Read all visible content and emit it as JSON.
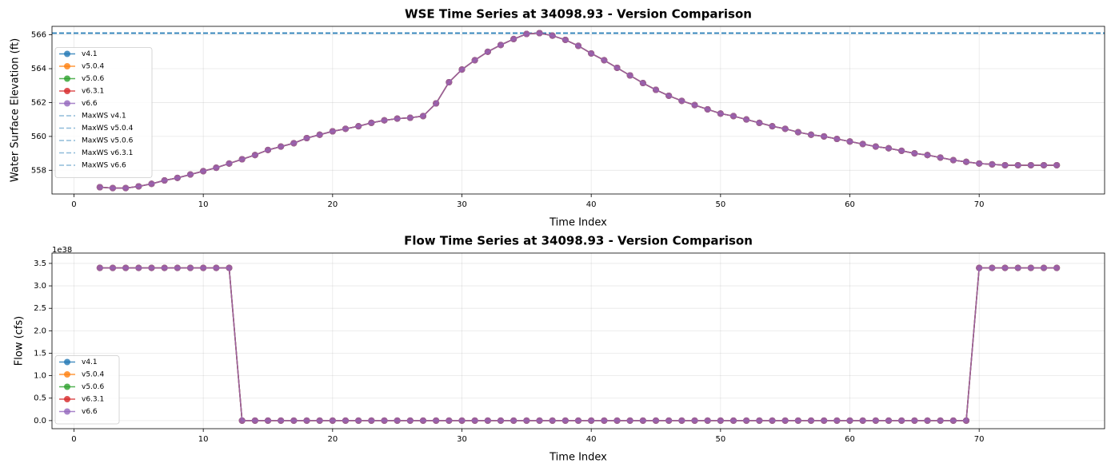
{
  "chart_data": [
    {
      "type": "line",
      "title": "WSE Time Series at 34098.93 - Version Comparison",
      "x_label": "Time Index",
      "y_label": "Water Surface Elevation (ft)",
      "x": [
        2,
        3,
        4,
        5,
        6,
        7,
        8,
        9,
        10,
        11,
        12,
        13,
        14,
        15,
        16,
        17,
        18,
        19,
        20,
        21,
        22,
        23,
        24,
        25,
        26,
        27,
        28,
        29,
        30,
        31,
        32,
        33,
        34,
        35,
        36,
        37,
        38,
        39,
        40,
        41,
        42,
        43,
        44,
        45,
        46,
        47,
        48,
        49,
        50,
        51,
        52,
        53,
        54,
        55,
        56,
        57,
        58,
        59,
        60,
        61,
        62,
        63,
        64,
        65,
        66,
        67,
        68,
        69,
        70,
        71,
        72,
        73,
        74,
        75,
        76
      ],
      "series": [
        {
          "name": "v4.1",
          "color": "#1f77b4",
          "values": [
            557.0,
            556.95,
            556.95,
            557.05,
            557.2,
            557.4,
            557.55,
            557.75,
            557.95,
            558.15,
            558.4,
            558.65,
            558.9,
            559.2,
            559.4,
            559.6,
            559.9,
            560.1,
            560.3,
            560.45,
            560.6,
            560.8,
            560.95,
            561.05,
            561.1,
            561.2,
            561.95,
            563.2,
            563.95,
            564.5,
            565.0,
            565.4,
            565.75,
            566.05,
            566.1,
            565.95,
            565.7,
            565.35,
            564.9,
            564.5,
            564.05,
            563.6,
            563.15,
            562.75,
            562.4,
            562.1,
            561.85,
            561.6,
            561.35,
            561.2,
            561.0,
            560.8,
            560.6,
            560.45,
            560.25,
            560.1,
            560.0,
            559.85,
            559.7,
            559.55,
            559.4,
            559.3,
            559.15,
            559.0,
            558.9,
            558.75,
            558.6,
            558.5,
            558.4,
            558.35,
            558.3,
            558.3,
            558.3,
            558.3,
            558.3
          ]
        },
        {
          "name": "v5.0.4",
          "color": "#ff7f0e",
          "values": [
            557.0,
            556.95,
            556.95,
            557.05,
            557.2,
            557.4,
            557.55,
            557.75,
            557.95,
            558.15,
            558.4,
            558.65,
            558.9,
            559.2,
            559.4,
            559.6,
            559.9,
            560.1,
            560.3,
            560.45,
            560.6,
            560.8,
            560.95,
            561.05,
            561.1,
            561.2,
            561.95,
            563.2,
            563.95,
            564.5,
            565.0,
            565.4,
            565.75,
            566.05,
            566.1,
            565.95,
            565.7,
            565.35,
            564.9,
            564.5,
            564.05,
            563.6,
            563.15,
            562.75,
            562.4,
            562.1,
            561.85,
            561.6,
            561.35,
            561.2,
            561.0,
            560.8,
            560.6,
            560.45,
            560.25,
            560.1,
            560.0,
            559.85,
            559.7,
            559.55,
            559.4,
            559.3,
            559.15,
            559.0,
            558.9,
            558.75,
            558.6,
            558.5,
            558.4,
            558.35,
            558.3,
            558.3,
            558.3,
            558.3,
            558.3
          ]
        },
        {
          "name": "v5.0.6",
          "color": "#2ca02c",
          "values": [
            557.0,
            556.95,
            556.95,
            557.05,
            557.2,
            557.4,
            557.55,
            557.75,
            557.95,
            558.15,
            558.4,
            558.65,
            558.9,
            559.2,
            559.4,
            559.6,
            559.9,
            560.1,
            560.3,
            560.45,
            560.6,
            560.8,
            560.95,
            561.05,
            561.1,
            561.2,
            561.95,
            563.2,
            563.95,
            564.5,
            565.0,
            565.4,
            565.75,
            566.05,
            566.1,
            565.95,
            565.7,
            565.35,
            564.9,
            564.5,
            564.05,
            563.6,
            563.15,
            562.75,
            562.4,
            562.1,
            561.85,
            561.6,
            561.35,
            561.2,
            561.0,
            560.8,
            560.6,
            560.45,
            560.25,
            560.1,
            560.0,
            559.85,
            559.7,
            559.55,
            559.4,
            559.3,
            559.15,
            559.0,
            558.9,
            558.75,
            558.6,
            558.5,
            558.4,
            558.35,
            558.3,
            558.3,
            558.3,
            558.3,
            558.3
          ]
        },
        {
          "name": "v6.3.1",
          "color": "#d62728",
          "values": [
            557.0,
            556.95,
            556.95,
            557.05,
            557.2,
            557.4,
            557.55,
            557.75,
            557.95,
            558.15,
            558.4,
            558.65,
            558.9,
            559.2,
            559.4,
            559.6,
            559.9,
            560.1,
            560.3,
            560.45,
            560.6,
            560.8,
            560.95,
            561.05,
            561.1,
            561.2,
            561.95,
            563.2,
            563.95,
            564.5,
            565.0,
            565.4,
            565.75,
            566.05,
            566.1,
            565.95,
            565.7,
            565.35,
            564.9,
            564.5,
            564.05,
            563.6,
            563.15,
            562.75,
            562.4,
            562.1,
            561.85,
            561.6,
            561.35,
            561.2,
            561.0,
            560.8,
            560.6,
            560.45,
            560.25,
            560.1,
            560.0,
            559.85,
            559.7,
            559.55,
            559.4,
            559.3,
            559.15,
            559.0,
            558.9,
            558.75,
            558.6,
            558.5,
            558.4,
            558.35,
            558.3,
            558.3,
            558.3,
            558.3,
            558.3
          ]
        },
        {
          "name": "v6.6",
          "color": "#9467bd",
          "values": [
            557.0,
            556.95,
            556.95,
            557.05,
            557.2,
            557.4,
            557.55,
            557.75,
            557.95,
            558.15,
            558.4,
            558.65,
            558.9,
            559.2,
            559.4,
            559.6,
            559.9,
            560.1,
            560.3,
            560.45,
            560.6,
            560.8,
            560.95,
            561.05,
            561.1,
            561.2,
            561.95,
            563.2,
            563.95,
            564.5,
            565.0,
            565.4,
            565.75,
            566.05,
            566.1,
            565.95,
            565.7,
            565.35,
            564.9,
            564.5,
            564.05,
            563.6,
            563.15,
            562.75,
            562.4,
            562.1,
            561.85,
            561.6,
            561.35,
            561.2,
            561.0,
            560.8,
            560.6,
            560.45,
            560.25,
            560.1,
            560.0,
            559.85,
            559.7,
            559.55,
            559.4,
            559.3,
            559.15,
            559.0,
            558.9,
            558.75,
            558.6,
            558.5,
            558.4,
            558.35,
            558.3,
            558.3,
            558.3,
            558.3,
            558.3
          ]
        }
      ],
      "reference_lines": [
        {
          "name": "MaxWS v4.1",
          "color": "#1f77b4",
          "value": 566.1
        },
        {
          "name": "MaxWS v5.0.4",
          "color": "#1f77b4",
          "value": 566.1
        },
        {
          "name": "MaxWS v5.0.6",
          "color": "#1f77b4",
          "value": 566.1
        },
        {
          "name": "MaxWS v6.3.1",
          "color": "#1f77b4",
          "value": 566.1
        },
        {
          "name": "MaxWS v6.6",
          "color": "#1f77b4",
          "value": 566.1
        }
      ],
      "xlim": [
        -1.7,
        79.7
      ],
      "xticks": [
        0,
        10,
        20,
        30,
        40,
        50,
        60,
        70
      ],
      "ylim": [
        556.6,
        566.5
      ],
      "yticks": [
        558,
        560,
        562,
        564,
        566
      ],
      "grid": true,
      "legend": "center left"
    },
    {
      "type": "line",
      "title": "Flow Time Series at 34098.93 - Version Comparison",
      "x_label": "Time Index",
      "y_label": "Flow (cfs)",
      "y_offset_label": "1e38",
      "x": [
        2,
        3,
        4,
        5,
        6,
        7,
        8,
        9,
        10,
        11,
        12,
        13,
        14,
        15,
        16,
        17,
        18,
        19,
        20,
        21,
        22,
        23,
        24,
        25,
        26,
        27,
        28,
        29,
        30,
        31,
        32,
        33,
        34,
        35,
        36,
        37,
        38,
        39,
        40,
        41,
        42,
        43,
        44,
        45,
        46,
        47,
        48,
        49,
        50,
        51,
        52,
        53,
        54,
        55,
        56,
        57,
        58,
        59,
        60,
        61,
        62,
        63,
        64,
        65,
        66,
        67,
        68,
        69,
        70,
        71,
        72,
        73,
        74,
        75,
        76
      ],
      "series": [
        {
          "name": "v4.1",
          "color": "#1f77b4",
          "values": [
            3.4,
            3.4,
            3.4,
            3.4,
            3.4,
            3.4,
            3.4,
            3.4,
            3.4,
            3.4,
            3.4,
            0,
            0,
            0,
            0,
            0,
            0,
            0,
            0,
            0,
            0,
            0,
            0,
            0,
            0,
            0,
            0,
            0,
            0,
            0,
            0,
            0,
            0,
            0,
            0,
            0,
            0,
            0,
            0,
            0,
            0,
            0,
            0,
            0,
            0,
            0,
            0,
            0,
            0,
            0,
            0,
            0,
            0,
            0,
            0,
            0,
            0,
            0,
            0,
            0,
            0,
            0,
            0,
            0,
            0,
            0,
            0,
            0,
            3.4,
            3.4,
            3.4,
            3.4,
            3.4,
            3.4,
            3.4
          ]
        },
        {
          "name": "v5.0.4",
          "color": "#ff7f0e",
          "values": [
            3.4,
            3.4,
            3.4,
            3.4,
            3.4,
            3.4,
            3.4,
            3.4,
            3.4,
            3.4,
            3.4,
            0,
            0,
            0,
            0,
            0,
            0,
            0,
            0,
            0,
            0,
            0,
            0,
            0,
            0,
            0,
            0,
            0,
            0,
            0,
            0,
            0,
            0,
            0,
            0,
            0,
            0,
            0,
            0,
            0,
            0,
            0,
            0,
            0,
            0,
            0,
            0,
            0,
            0,
            0,
            0,
            0,
            0,
            0,
            0,
            0,
            0,
            0,
            0,
            0,
            0,
            0,
            0,
            0,
            0,
            0,
            0,
            0,
            3.4,
            3.4,
            3.4,
            3.4,
            3.4,
            3.4,
            3.4
          ]
        },
        {
          "name": "v5.0.6",
          "color": "#2ca02c",
          "values": [
            3.4,
            3.4,
            3.4,
            3.4,
            3.4,
            3.4,
            3.4,
            3.4,
            3.4,
            3.4,
            3.4,
            0,
            0,
            0,
            0,
            0,
            0,
            0,
            0,
            0,
            0,
            0,
            0,
            0,
            0,
            0,
            0,
            0,
            0,
            0,
            0,
            0,
            0,
            0,
            0,
            0,
            0,
            0,
            0,
            0,
            0,
            0,
            0,
            0,
            0,
            0,
            0,
            0,
            0,
            0,
            0,
            0,
            0,
            0,
            0,
            0,
            0,
            0,
            0,
            0,
            0,
            0,
            0,
            0,
            0,
            0,
            0,
            0,
            3.4,
            3.4,
            3.4,
            3.4,
            3.4,
            3.4,
            3.4
          ]
        },
        {
          "name": "v6.3.1",
          "color": "#d62728",
          "values": [
            3.4,
            3.4,
            3.4,
            3.4,
            3.4,
            3.4,
            3.4,
            3.4,
            3.4,
            3.4,
            3.4,
            0,
            0,
            0,
            0,
            0,
            0,
            0,
            0,
            0,
            0,
            0,
            0,
            0,
            0,
            0,
            0,
            0,
            0,
            0,
            0,
            0,
            0,
            0,
            0,
            0,
            0,
            0,
            0,
            0,
            0,
            0,
            0,
            0,
            0,
            0,
            0,
            0,
            0,
            0,
            0,
            0,
            0,
            0,
            0,
            0,
            0,
            0,
            0,
            0,
            0,
            0,
            0,
            0,
            0,
            0,
            0,
            0,
            3.4,
            3.4,
            3.4,
            3.4,
            3.4,
            3.4,
            3.4
          ]
        },
        {
          "name": "v6.6",
          "color": "#9467bd",
          "values": [
            3.4,
            3.4,
            3.4,
            3.4,
            3.4,
            3.4,
            3.4,
            3.4,
            3.4,
            3.4,
            3.4,
            0,
            0,
            0,
            0,
            0,
            0,
            0,
            0,
            0,
            0,
            0,
            0,
            0,
            0,
            0,
            0,
            0,
            0,
            0,
            0,
            0,
            0,
            0,
            0,
            0,
            0,
            0,
            0,
            0,
            0,
            0,
            0,
            0,
            0,
            0,
            0,
            0,
            0,
            0,
            0,
            0,
            0,
            0,
            0,
            0,
            0,
            0,
            0,
            0,
            0,
            0,
            0,
            0,
            0,
            0,
            0,
            0,
            3.4,
            3.4,
            3.4,
            3.4,
            3.4,
            3.4,
            3.4
          ]
        }
      ],
      "xlim": [
        -1.7,
        79.7
      ],
      "xticks": [
        0,
        10,
        20,
        30,
        40,
        50,
        60,
        70
      ],
      "ylim": [
        -0.18,
        3.73
      ],
      "yticks": [
        {
          "value": 0,
          "label": "0.0"
        },
        {
          "value": 0.5,
          "label": "0.5"
        },
        {
          "value": 1,
          "label": "1.0"
        },
        {
          "value": 1.5,
          "label": "1.5"
        },
        {
          "value": 2,
          "label": "2.0"
        },
        {
          "value": 2.5,
          "label": "2.5"
        },
        {
          "value": 3,
          "label": "3.0"
        },
        {
          "value": 3.5,
          "label": "3.5"
        }
      ],
      "grid": true,
      "legend": "lower left"
    }
  ]
}
